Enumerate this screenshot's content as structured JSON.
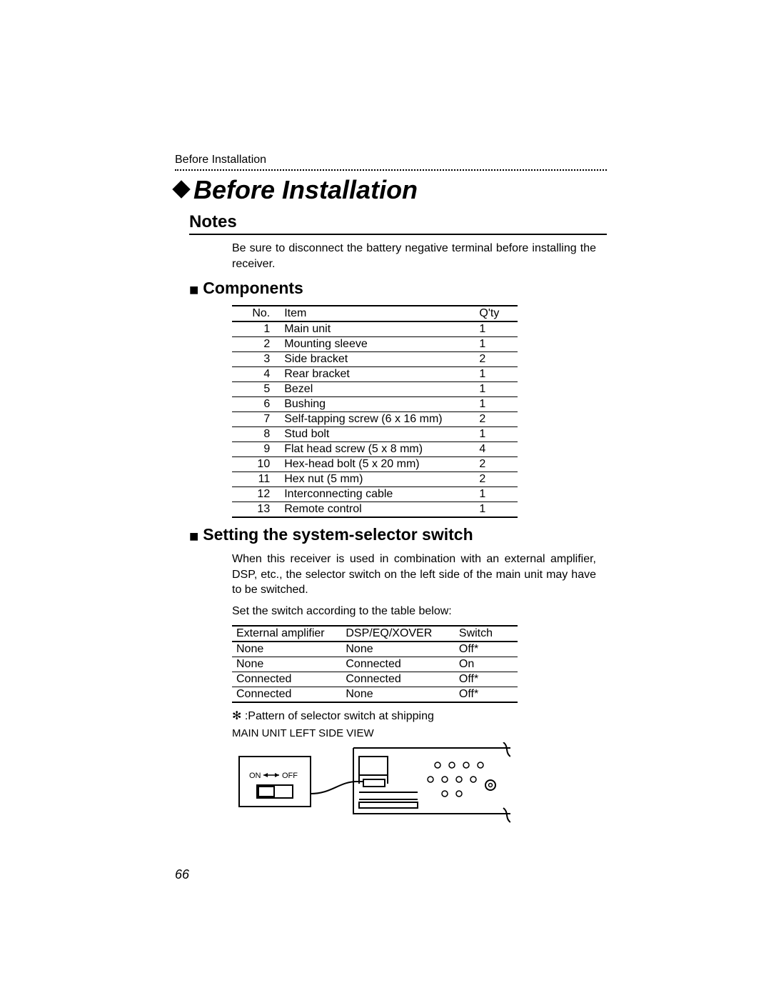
{
  "running_head": "Before Installation",
  "chapter_title": "Before Installation",
  "notes": {
    "heading": "Notes",
    "text": "Be sure to disconnect the battery negative terminal before installing the receiver."
  },
  "components": {
    "heading": "Components",
    "columns": {
      "no": "No.",
      "item": "Item",
      "qty": "Q'ty"
    },
    "rows": [
      {
        "no": "1",
        "item": "Main unit",
        "qty": "1"
      },
      {
        "no": "2",
        "item": "Mounting sleeve",
        "qty": "1"
      },
      {
        "no": "3",
        "item": "Side bracket",
        "qty": "2"
      },
      {
        "no": "4",
        "item": "Rear bracket",
        "qty": "1"
      },
      {
        "no": "5",
        "item": "Bezel",
        "qty": "1"
      },
      {
        "no": "6",
        "item": "Bushing",
        "qty": "1"
      },
      {
        "no": "7",
        "item": "Self-tapping screw (6 x 16 mm)",
        "qty": "2"
      },
      {
        "no": "8",
        "item": "Stud bolt",
        "qty": "1"
      },
      {
        "no": "9",
        "item": "Flat head screw (5 x 8 mm)",
        "qty": "4"
      },
      {
        "no": "10",
        "item": "Hex-head bolt (5 x 20 mm)",
        "qty": "2"
      },
      {
        "no": "11",
        "item": "Hex nut (5 mm)",
        "qty": "2"
      },
      {
        "no": "12",
        "item": "Interconnecting cable",
        "qty": "1"
      },
      {
        "no": "13",
        "item": "Remote control",
        "qty": "1"
      }
    ]
  },
  "selector": {
    "heading": "Setting the system-selector switch",
    "intro": "When this receiver is used in combination with an external amplifier, DSP, etc., the selector switch on the left side of the main unit may have to be switched.",
    "instruction": "Set the switch according to the table below:",
    "columns": {
      "amp": "External amplifier",
      "dsp": "DSP/EQ/XOVER",
      "switch": "Switch"
    },
    "rows": [
      {
        "amp": "None",
        "dsp": "None",
        "switch": "Off*"
      },
      {
        "amp": "None",
        "dsp": "Connected",
        "switch": "On"
      },
      {
        "amp": "Connected",
        "dsp": "Connected",
        "switch": "Off*"
      },
      {
        "amp": "Connected",
        "dsp": "None",
        "switch": "Off*"
      }
    ],
    "footnote": "✻ :Pattern of selector switch at shipping",
    "diagram_label": "MAIN UNIT LEFT SIDE VIEW",
    "switch_on_label": "ON",
    "switch_off_label": "OFF"
  },
  "page_number": "66",
  "colors": {
    "text": "#000000",
    "background": "#ffffff",
    "rule": "#000000"
  }
}
